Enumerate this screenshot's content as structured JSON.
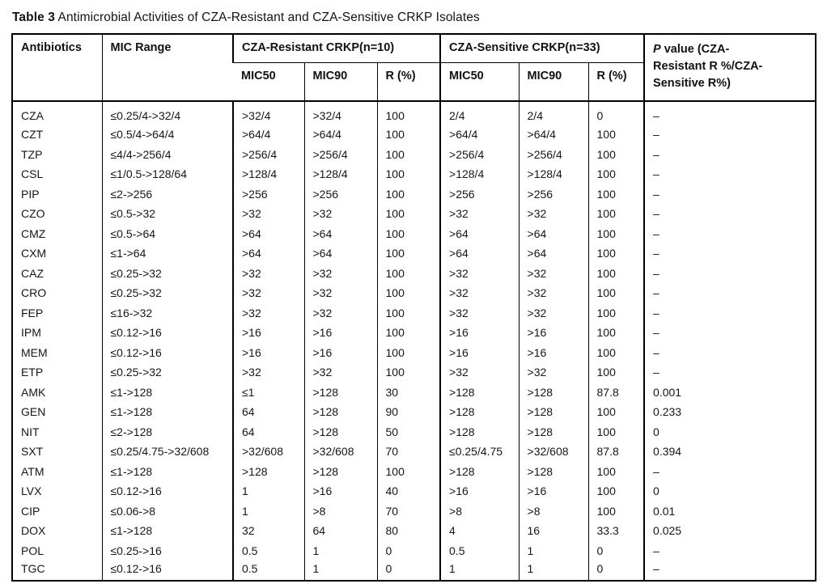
{
  "title": {
    "label": "Table 3",
    "caption": " Antimicrobial Activities of CZA-Resistant and CZA-Sensitive CRKP Isolates"
  },
  "colors": {
    "border": "#000000",
    "text": "#161616",
    "background": "#ffffff"
  },
  "table": {
    "header": {
      "antibiotics": "Antibiotics",
      "mic_range": "MIC Range",
      "resistant_group": "CZA-Resistant CRKP(n=10)",
      "sensitive_group": "CZA-Sensitive CRKP(n=33)",
      "mic50": "MIC50",
      "mic90": "MIC90",
      "r_pct": "R (%)",
      "p_value_italic": "P",
      "p_value_line1_rest": " value (CZA-",
      "p_value_line2": "Resistant R %/CZA-",
      "p_value_line3": "Sensitive R%)"
    },
    "rows": [
      {
        "antibiotic": "CZA",
        "mic_range": "≤0.25/4->32/4",
        "r_mic50": ">32/4",
        "r_mic90": ">32/4",
        "r_pct": "100",
        "s_mic50": "2/4",
        "s_mic90": "2/4",
        "s_pct": "0",
        "p_value": "–"
      },
      {
        "antibiotic": "CZT",
        "mic_range": "≤0.5/4->64/4",
        "r_mic50": ">64/4",
        "r_mic90": ">64/4",
        "r_pct": "100",
        "s_mic50": ">64/4",
        "s_mic90": ">64/4",
        "s_pct": "100",
        "p_value": "–"
      },
      {
        "antibiotic": "TZP",
        "mic_range": "≤4/4->256/4",
        "r_mic50": ">256/4",
        "r_mic90": ">256/4",
        "r_pct": "100",
        "s_mic50": ">256/4",
        "s_mic90": ">256/4",
        "s_pct": "100",
        "p_value": "–"
      },
      {
        "antibiotic": "CSL",
        "mic_range": "≤1/0.5->128/64",
        "r_mic50": ">128/4",
        "r_mic90": ">128/4",
        "r_pct": "100",
        "s_mic50": ">128/4",
        "s_mic90": ">128/4",
        "s_pct": "100",
        "p_value": "–"
      },
      {
        "antibiotic": "PIP",
        "mic_range": "≤2->256",
        "r_mic50": ">256",
        "r_mic90": ">256",
        "r_pct": "100",
        "s_mic50": ">256",
        "s_mic90": ">256",
        "s_pct": "100",
        "p_value": "–"
      },
      {
        "antibiotic": "CZO",
        "mic_range": "≤0.5->32",
        "r_mic50": ">32",
        "r_mic90": ">32",
        "r_pct": "100",
        "s_mic50": ">32",
        "s_mic90": ">32",
        "s_pct": "100",
        "p_value": "–"
      },
      {
        "antibiotic": "CMZ",
        "mic_range": "≤0.5->64",
        "r_mic50": ">64",
        "r_mic90": ">64",
        "r_pct": "100",
        "s_mic50": ">64",
        "s_mic90": ">64",
        "s_pct": "100",
        "p_value": "–"
      },
      {
        "antibiotic": "CXM",
        "mic_range": "≤1->64",
        "r_mic50": ">64",
        "r_mic90": ">64",
        "r_pct": "100",
        "s_mic50": ">64",
        "s_mic90": ">64",
        "s_pct": "100",
        "p_value": "–"
      },
      {
        "antibiotic": "CAZ",
        "mic_range": "≤0.25->32",
        "r_mic50": ">32",
        "r_mic90": ">32",
        "r_pct": "100",
        "s_mic50": ">32",
        "s_mic90": ">32",
        "s_pct": "100",
        "p_value": "–"
      },
      {
        "antibiotic": "CRO",
        "mic_range": "≤0.25->32",
        "r_mic50": ">32",
        "r_mic90": ">32",
        "r_pct": "100",
        "s_mic50": ">32",
        "s_mic90": ">32",
        "s_pct": "100",
        "p_value": "–"
      },
      {
        "antibiotic": "FEP",
        "mic_range": "≤16->32",
        "r_mic50": ">32",
        "r_mic90": ">32",
        "r_pct": "100",
        "s_mic50": ">32",
        "s_mic90": ">32",
        "s_pct": "100",
        "p_value": "–"
      },
      {
        "antibiotic": "IPM",
        "mic_range": "≤0.12->16",
        "r_mic50": ">16",
        "r_mic90": ">16",
        "r_pct": "100",
        "s_mic50": ">16",
        "s_mic90": ">16",
        "s_pct": "100",
        "p_value": "–"
      },
      {
        "antibiotic": "MEM",
        "mic_range": "≤0.12->16",
        "r_mic50": ">16",
        "r_mic90": ">16",
        "r_pct": "100",
        "s_mic50": ">16",
        "s_mic90": ">16",
        "s_pct": "100",
        "p_value": "–"
      },
      {
        "antibiotic": "ETP",
        "mic_range": "≤0.25->32",
        "r_mic50": ">32",
        "r_mic90": ">32",
        "r_pct": "100",
        "s_mic50": ">32",
        "s_mic90": ">32",
        "s_pct": "100",
        "p_value": "–"
      },
      {
        "antibiotic": "AMK",
        "mic_range": "≤1->128",
        "r_mic50": "≤1",
        "r_mic90": ">128",
        "r_pct": "30",
        "s_mic50": ">128",
        "s_mic90": ">128",
        "s_pct": "87.8",
        "p_value": "0.001"
      },
      {
        "antibiotic": "GEN",
        "mic_range": "≤1->128",
        "r_mic50": "64",
        "r_mic90": ">128",
        "r_pct": "90",
        "s_mic50": ">128",
        "s_mic90": ">128",
        "s_pct": "100",
        "p_value": "0.233"
      },
      {
        "antibiotic": "NIT",
        "mic_range": "≤2->128",
        "r_mic50": "64",
        "r_mic90": ">128",
        "r_pct": "50",
        "s_mic50": ">128",
        "s_mic90": ">128",
        "s_pct": "100",
        "p_value": "0"
      },
      {
        "antibiotic": "SXT",
        "mic_range": "≤0.25/4.75->32/608",
        "r_mic50": ">32/608",
        "r_mic90": ">32/608",
        "r_pct": "70",
        "s_mic50": "≤0.25/4.75",
        "s_mic90": ">32/608",
        "s_pct": "87.8",
        "p_value": "0.394"
      },
      {
        "antibiotic": "ATM",
        "mic_range": "≤1->128",
        "r_mic50": ">128",
        "r_mic90": ">128",
        "r_pct": "100",
        "s_mic50": ">128",
        "s_mic90": ">128",
        "s_pct": "100",
        "p_value": "–"
      },
      {
        "antibiotic": "LVX",
        "mic_range": "≤0.12->16",
        "r_mic50": "1",
        "r_mic90": ">16",
        "r_pct": "40",
        "s_mic50": ">16",
        "s_mic90": ">16",
        "s_pct": "100",
        "p_value": "0"
      },
      {
        "antibiotic": "CIP",
        "mic_range": "≤0.06->8",
        "r_mic50": "1",
        "r_mic90": ">8",
        "r_pct": "70",
        "s_mic50": ">8",
        "s_mic90": ">8",
        "s_pct": "100",
        "p_value": "0.01"
      },
      {
        "antibiotic": "DOX",
        "mic_range": "≤1->128",
        "r_mic50": "32",
        "r_mic90": "64",
        "r_pct": "80",
        "s_mic50": "4",
        "s_mic90": "16",
        "s_pct": "33.3",
        "p_value": "0.025"
      },
      {
        "antibiotic": "POL",
        "mic_range": "≤0.25->16",
        "r_mic50": "0.5",
        "r_mic90": "1",
        "r_pct": "0",
        "s_mic50": "0.5",
        "s_mic90": "1",
        "s_pct": "0",
        "p_value": "–"
      },
      {
        "antibiotic": "TGC",
        "mic_range": "≤0.12->16",
        "r_mic50": "0.5",
        "r_mic90": "1",
        "r_pct": "0",
        "s_mic50": "1",
        "s_mic90": "1",
        "s_pct": "0",
        "p_value": "–"
      }
    ]
  }
}
